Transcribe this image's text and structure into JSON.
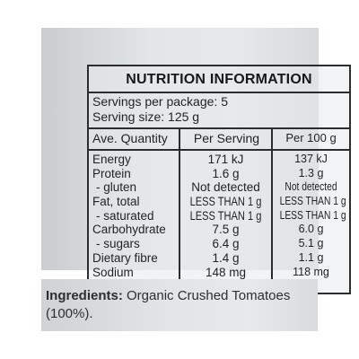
{
  "nutrition": {
    "title": "NUTRITION INFORMATION",
    "servings_per_package": "Servings per package: 5",
    "serving_size": "Serving size: 125 g",
    "headers": {
      "name": "Ave. Quantity",
      "per_serving": "Per Serving",
      "per_100g": "Per 100 g"
    },
    "rows": [
      {
        "name": "Energy",
        "per_serving": "171 kJ",
        "per_100g": "137 kJ"
      },
      {
        "name": "Protein",
        "per_serving": "1.6 g",
        "per_100g": "1.3 g"
      },
      {
        "name": "- gluten",
        "per_serving": "Not detected",
        "per_100g": "Not detected"
      },
      {
        "name": "Fat, total",
        "per_serving": "LESS THAN 1 g",
        "per_100g": "LESS THAN 1 g"
      },
      {
        "name": "- saturated",
        "per_serving": "LESS THAN 1 g",
        "per_100g": "LESS THAN 1 g"
      },
      {
        "name": "Carbohydrate",
        "per_serving": "7.5 g",
        "per_100g": "6.0 g"
      },
      {
        "name": "- sugars",
        "per_serving": "6.4 g",
        "per_100g": "5.1 g"
      },
      {
        "name": "Dietary fibre",
        "per_serving": "1.4 g",
        "per_100g": "1.1 g"
      },
      {
        "name": "Sodium",
        "per_serving": "148 mg",
        "per_100g": "118 mg"
      }
    ]
  },
  "ingredients": {
    "label": "Ingredients:",
    "text": " Organic Crushed Tomatoes (100%)."
  },
  "colors": {
    "panel": "#e3e6e7",
    "ink": "#1f2326",
    "rule": "#2a2e31"
  }
}
